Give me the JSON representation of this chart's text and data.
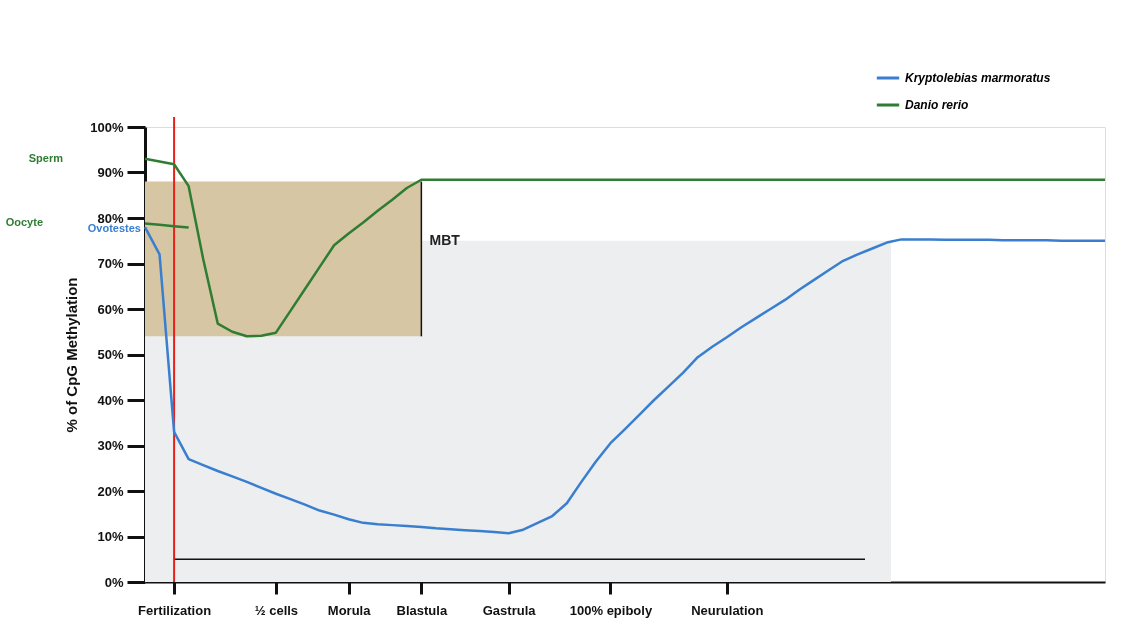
{
  "chart_data": {
    "type": "line",
    "ylabel": "% of CpG Methylation",
    "categories": [
      null,
      null,
      "Fertilization",
      null,
      null,
      null,
      null,
      null,
      null,
      "½ cells",
      null,
      null,
      null,
      null,
      "Morula",
      null,
      null,
      null,
      null,
      "Blastula",
      null,
      null,
      null,
      null,
      null,
      "Gastrula",
      null,
      null,
      null,
      null,
      null,
      null,
      "100% epiboly",
      null,
      null,
      null,
      null,
      null,
      null,
      null,
      "Neurulation",
      null,
      null,
      null,
      null,
      null,
      null,
      null,
      null,
      null,
      null,
      null,
      null,
      null,
      null,
      null,
      null,
      null,
      null,
      null,
      null,
      null,
      null,
      null,
      null,
      null,
      null
    ],
    "ylim": [
      0,
      100
    ],
    "yticks": [
      {
        "value": 0,
        "label": "0%"
      },
      {
        "value": 10,
        "label": "10%"
      },
      {
        "value": 20,
        "label": "20%"
      },
      {
        "value": 30,
        "label": "30%"
      },
      {
        "value": 40,
        "label": "40%"
      },
      {
        "value": 50,
        "label": "50%"
      },
      {
        "value": 60,
        "label": "60%"
      },
      {
        "value": 70,
        "label": "70%"
      },
      {
        "value": 80,
        "label": "80%"
      },
      {
        "value": 90,
        "label": "90%"
      },
      {
        "value": 100,
        "label": "100%"
      }
    ],
    "series": [
      {
        "name": "Kryptolebias marmoratus",
        "color": "#3a7fcf",
        "values": [
          78,
          72,
          33,
          27,
          25.7,
          24.4,
          23.2,
          22,
          20.7,
          19.4,
          18.2,
          17,
          15.7,
          14.8,
          13.8,
          13,
          12.7,
          12.5,
          12.3,
          12.1,
          11.8,
          11.6,
          11.4,
          11.2,
          11,
          10.7,
          11.5,
          13,
          14.5,
          17.3,
          22,
          26.5,
          30.5,
          33.6,
          36.8,
          40,
          43,
          46,
          49.4,
          51.7,
          53.8,
          56,
          58,
          60,
          62,
          64.3,
          66.4,
          68.5,
          70.6,
          72,
          73.3,
          74.6,
          75.3,
          75.3,
          75.3,
          75.2,
          75.2,
          75.2,
          75.2,
          75.1,
          75.1,
          75.1,
          75.1,
          75,
          75,
          75,
          75
        ]
      },
      {
        "name": "Danio rerio",
        "color": "#2e7d32",
        "values": [
          93,
          92.4,
          91.8,
          87,
          71,
          56.8,
          55,
          54,
          54.1,
          54.8,
          59.6,
          64.4,
          69.2,
          74,
          76.6,
          79,
          81.6,
          84,
          86.6,
          88.4,
          88.4,
          88.4,
          88.4,
          88.4,
          88.4,
          88.4,
          88.4,
          88.4,
          88.4,
          88.4,
          88.4,
          88.4,
          88.4,
          88.4,
          88.4,
          88.4,
          88.4,
          88.4,
          88.4,
          88.4,
          88.4,
          88.4,
          88.4,
          88.4,
          88.4,
          88.4,
          88.4,
          88.4,
          88.4,
          88.4,
          88.4,
          88.4,
          88.4,
          88.4,
          88.4,
          88.4,
          88.4,
          88.4,
          88.4,
          88.4,
          88.4,
          88.4,
          88.4,
          88.4,
          88.4,
          88.4,
          88.4
        ]
      },
      {
        "color": "#2e7d32",
        "values": [
          78.8,
          78.5,
          78.2,
          77.9,
          null,
          null,
          null,
          null,
          null,
          null,
          null,
          null,
          null,
          null,
          null,
          null,
          null,
          null,
          null,
          null,
          null,
          null,
          null,
          null,
          null,
          null,
          null,
          null,
          null,
          null,
          null,
          null,
          null,
          null,
          null,
          null,
          null,
          null,
          null,
          null,
          null,
          null,
          null,
          null,
          null,
          null,
          null,
          null,
          null,
          null,
          null,
          null,
          null,
          null,
          null,
          null,
          null,
          null,
          null,
          null,
          null,
          null,
          null,
          null,
          null,
          null,
          null
        ]
      }
    ],
    "bands": [
      {
        "axis": "y",
        "from": 54,
        "to": 88,
        "color": "#d6c6a4"
      }
    ],
    "ref_lines": [
      {
        "axis": "x",
        "value": "Fertilization",
        "color": "#e8201a"
      },
      {
        "axis": "y",
        "value": 5,
        "color": "#111111"
      },
      {
        "axis": "x",
        "value": "Blastula",
        "color": "#111111"
      }
    ],
    "annotations": [
      "Sperm",
      "Oocyte",
      "Ovotestes",
      "MBT"
    ],
    "legend": "top right",
    "grid": false,
    "marker": "none",
    "line_style": "solid"
  }
}
